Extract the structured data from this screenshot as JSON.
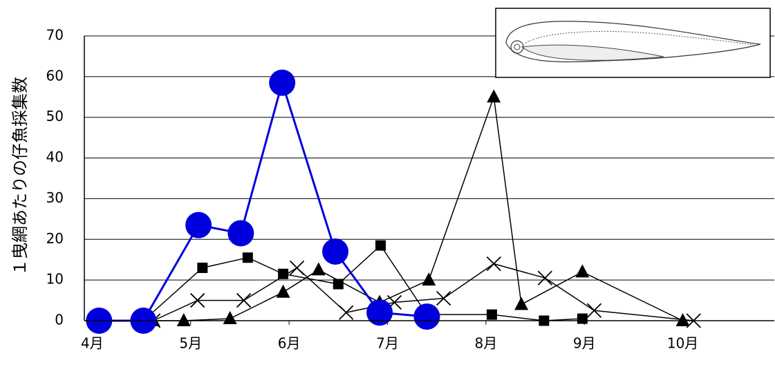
{
  "chart_data": {
    "type": "line",
    "y_label": "１曳網あたりの仔魚採集数",
    "xlim": [
      3.92,
      10.93
    ],
    "xticks": [
      {
        "value": 4,
        "label": "4月"
      },
      {
        "value": 5,
        "label": "5月"
      },
      {
        "value": 6,
        "label": "6月"
      },
      {
        "value": 7,
        "label": "7月"
      },
      {
        "value": 8,
        "label": "8月"
      },
      {
        "value": 9,
        "label": "9月"
      },
      {
        "value": 10,
        "label": "10月"
      }
    ],
    "ylim": [
      0,
      70
    ],
    "yticks": [
      0,
      10,
      20,
      30,
      40,
      50,
      60,
      70
    ],
    "grid": true,
    "series": [
      {
        "marker": "square",
        "color": "#000000",
        "x": [
          4.52,
          5.12,
          5.58,
          5.94,
          6.5,
          6.93,
          7.4,
          8.06,
          8.59,
          8.98
        ],
        "values": [
          0,
          13,
          15.5,
          11.5,
          9,
          18.5,
          1.5,
          1.5,
          0,
          0.5
        ]
      },
      {
        "marker": "triangle",
        "color": "#000000",
        "x": [
          4.62,
          4.93,
          5.4,
          5.94,
          6.3,
          6.92,
          7.42,
          8.08,
          8.36,
          8.98,
          10.0
        ],
        "values": [
          0,
          0,
          0.5,
          7,
          12.5,
          4.5,
          10,
          55,
          4,
          12,
          0
        ]
      },
      {
        "marker": "cross",
        "color": "#000000",
        "x": [
          4.62,
          5.07,
          5.54,
          6.08,
          6.58,
          7.07,
          7.57,
          8.08,
          8.6,
          9.1,
          10.11
        ],
        "values": [
          0,
          5,
          5,
          13,
          2,
          4.5,
          5.5,
          14,
          10.5,
          2.5,
          0
        ]
      },
      {
        "marker": "circle",
        "color": "#0000dd",
        "x": [
          4.07,
          4.52,
          5.08,
          5.51,
          5.93,
          6.47,
          6.92,
          7.4
        ],
        "values": [
          0,
          0,
          23.5,
          21.5,
          58.5,
          17,
          2,
          1
        ]
      }
    ]
  }
}
